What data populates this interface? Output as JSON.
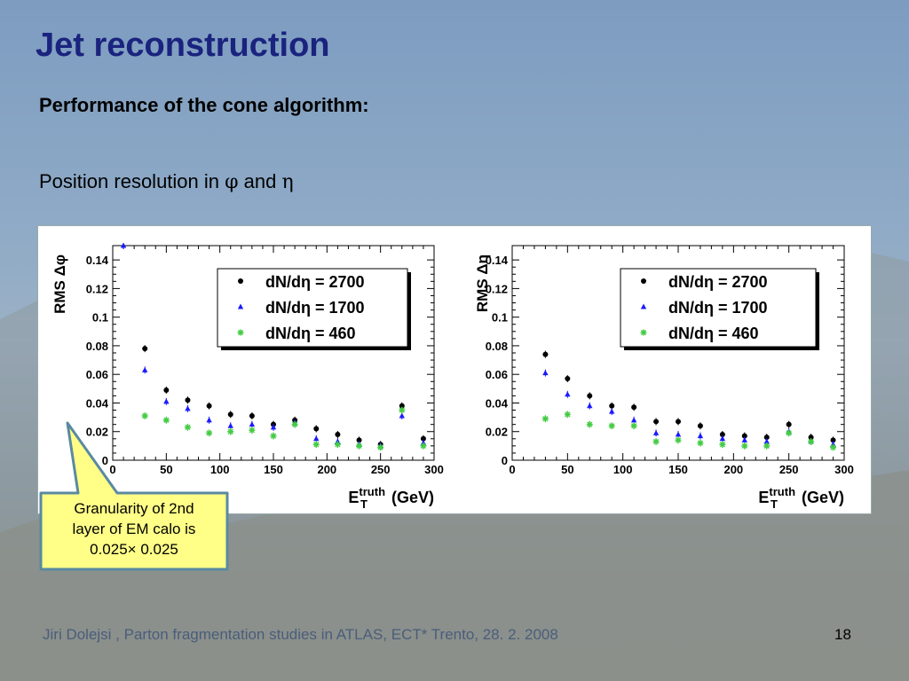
{
  "slide": {
    "title": "Jet reconstruction",
    "subtitle": "Performance of the cone algorithm:",
    "text_prefix": "Position resolution in ",
    "phi_symbol": "φ",
    "and_word": " and ",
    "eta_symbol": "η",
    "callout": [
      "Granularity of 2nd",
      "layer of EM calo is",
      "0.025× 0.025"
    ],
    "footer": "Jiri Dolejsi , Parton fragmentation studies in ATLAS, ECT* Trento, 28. 2. 2008",
    "page_number": "18"
  },
  "colors": {
    "title": "#1a237e",
    "series_2700": "#000000",
    "series_1700": "#1a1aff",
    "series_460": "#44cc44",
    "callout_fill": "#ffff88",
    "callout_border": "#5a8aa0"
  },
  "chart_data": [
    {
      "type": "scatter",
      "ylabel": "RMS Δφ",
      "xlabel_main": "E",
      "xlabel_sup": "truth",
      "xlabel_sub": "T",
      "xlabel_unit": "(GeV)",
      "xlim": [
        0,
        300
      ],
      "ylim": [
        0,
        0.15
      ],
      "xticks": [
        0,
        50,
        100,
        150,
        200,
        250,
        300
      ],
      "yticks": [
        0,
        0.02,
        0.04,
        0.06,
        0.08,
        0.1,
        0.12,
        0.14
      ],
      "grid": false,
      "legend_position": "top-right",
      "series": [
        {
          "name": "dN/dη = 2700",
          "marker": "circle",
          "x": [
            30,
            50,
            70,
            90,
            110,
            130,
            150,
            170,
            190,
            210,
            230,
            250,
            270,
            290
          ],
          "y": [
            0.078,
            0.049,
            0.042,
            0.038,
            0.032,
            0.031,
            0.025,
            0.028,
            0.022,
            0.018,
            0.014,
            0.011,
            0.038,
            0.015
          ]
        },
        {
          "name": "dN/dη = 1700",
          "marker": "triangle",
          "x": [
            10,
            30,
            50,
            70,
            90,
            110,
            130,
            150,
            170,
            190,
            210,
            230,
            250,
            270,
            290
          ],
          "y": [
            0.15,
            0.063,
            0.041,
            0.036,
            0.028,
            0.024,
            0.025,
            0.023,
            0.026,
            0.015,
            0.013,
            0.011,
            0.01,
            0.031,
            0.012
          ]
        },
        {
          "name": "dN/dη = 460",
          "marker": "star",
          "x": [
            30,
            50,
            70,
            90,
            110,
            130,
            150,
            170,
            190,
            210,
            230,
            250,
            270,
            290
          ],
          "y": [
            0.031,
            0.028,
            0.023,
            0.019,
            0.02,
            0.021,
            0.017,
            0.025,
            0.011,
            0.011,
            0.01,
            0.009,
            0.035,
            0.01
          ]
        }
      ]
    },
    {
      "type": "scatter",
      "ylabel": "RMS Δη",
      "xlabel_main": "E",
      "xlabel_sup": "truth",
      "xlabel_sub": "T",
      "xlabel_unit": "(GeV)",
      "xlim": [
        0,
        300
      ],
      "ylim": [
        0,
        0.15
      ],
      "xticks": [
        0,
        50,
        100,
        150,
        200,
        250,
        300
      ],
      "yticks": [
        0,
        0.02,
        0.04,
        0.06,
        0.08,
        0.1,
        0.12,
        0.14
      ],
      "grid": false,
      "legend_position": "top-right",
      "series": [
        {
          "name": "dN/dη = 2700",
          "marker": "circle",
          "x": [
            30,
            50,
            70,
            90,
            110,
            130,
            150,
            170,
            190,
            210,
            230,
            250,
            270,
            290
          ],
          "y": [
            0.074,
            0.057,
            0.045,
            0.038,
            0.037,
            0.027,
            0.027,
            0.024,
            0.018,
            0.017,
            0.016,
            0.025,
            0.016,
            0.014
          ]
        },
        {
          "name": "dN/dη = 1700",
          "marker": "triangle",
          "x": [
            30,
            50,
            70,
            90,
            110,
            130,
            150,
            170,
            190,
            210,
            230,
            250,
            270,
            290
          ],
          "y": [
            0.061,
            0.046,
            0.038,
            0.034,
            0.028,
            0.019,
            0.018,
            0.017,
            0.015,
            0.014,
            0.013,
            0.02,
            0.013,
            0.011
          ]
        },
        {
          "name": "dN/dη = 460",
          "marker": "star",
          "x": [
            30,
            50,
            70,
            90,
            110,
            130,
            150,
            170,
            190,
            210,
            230,
            250,
            270,
            290
          ],
          "y": [
            0.029,
            0.032,
            0.025,
            0.024,
            0.024,
            0.013,
            0.014,
            0.012,
            0.011,
            0.01,
            0.01,
            0.019,
            0.013,
            0.009
          ]
        }
      ]
    }
  ]
}
